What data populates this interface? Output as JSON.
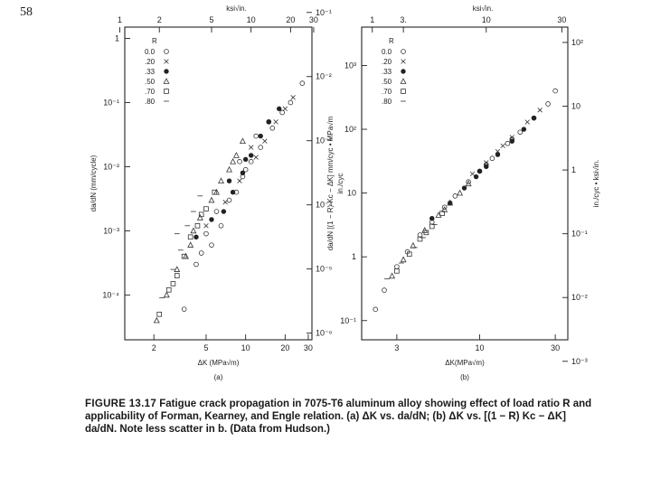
{
  "page_number": "58",
  "caption": {
    "figure_label": "FIGURE 13.17",
    "text": "Fatigue crack propagation in 7075-T6 aluminum alloy showing effect of load ratio R and applicability of Forman, Kearney, and Engle relation. (a) ΔK vs. da/dN; (b) ΔK vs. [(1 − R) Kc − ΔK] da/dN. Note less scatter in b. (Data from Hudson.)"
  },
  "chart_data": [
    {
      "type": "scatter",
      "panel_label": "(a)",
      "xlabel": "ΔK (MPa√m)",
      "top_xlabel": "ksi√in.",
      "ylabel": "da/dN (mm/cycle)",
      "right_ylabel": "in./cyc",
      "x_scale": "log",
      "y_scale": "log",
      "xlim": [
        1.2,
        32
      ],
      "ylim": [
        2e-05,
        1.5
      ],
      "x_ticks": [
        "2",
        "5",
        "10",
        "20",
        "30"
      ],
      "x_tick_values": [
        2,
        5,
        10,
        20,
        30
      ],
      "top_ticks": [
        "1",
        "2",
        "5",
        "10",
        "20",
        "30"
      ],
      "top_tick_values": [
        1.1,
        2.2,
        5.5,
        11,
        22,
        33
      ],
      "y_ticks": [
        "1",
        "10⁻¹",
        "10⁻²",
        "10⁻³",
        "10⁻⁴"
      ],
      "y_tick_values": [
        1,
        0.1,
        0.01,
        0.001,
        0.0001
      ],
      "right_ticks": [
        "10⁻¹",
        "10⁻²",
        "10⁻³",
        "10⁻⁴",
        "10⁻⁵",
        "10⁻⁶"
      ],
      "right_tick_values": [
        2.54,
        0.254,
        0.0254,
        0.00254,
        0.000254,
        2.54e-05
      ],
      "legend": {
        "title": "R",
        "placement": "top-left",
        "entries": [
          {
            "label": "0.0",
            "marker": "circle"
          },
          {
            "label": ".20",
            "marker": "cross"
          },
          {
            "label": ".33",
            "marker": "dot"
          },
          {
            "label": ".50",
            "marker": "triangle"
          },
          {
            "label": ".70",
            "marker": "square"
          },
          {
            "label": ".80",
            "marker": "dash"
          }
        ]
      },
      "series": [
        {
          "name": "0.0",
          "marker": "circle",
          "points": [
            [
              3.4,
              6e-05
            ],
            [
              4.2,
              0.0003
            ],
            [
              5.5,
              0.0006
            ],
            [
              6.5,
              0.0012
            ],
            [
              7.5,
              0.003
            ],
            [
              8.5,
              0.004
            ],
            [
              9.5,
              0.007
            ],
            [
              11,
              0.012
            ],
            [
              13,
              0.02
            ],
            [
              16,
              0.04
            ],
            [
              19,
              0.07
            ],
            [
              22,
              0.1
            ],
            [
              27,
              0.2
            ],
            [
              5.0,
              0.0009
            ],
            [
              6.0,
              0.002
            ],
            [
              9,
              0.012
            ],
            [
              12,
              0.03
            ],
            [
              15,
              0.05
            ],
            [
              4.6,
              0.00045
            ],
            [
              10,
              0.009
            ]
          ]
        },
        {
          "name": ".20",
          "marker": "cross",
          "points": [
            [
              5.0,
              0.0012
            ],
            [
              7,
              0.0028
            ],
            [
              9,
              0.006
            ],
            [
              12,
              0.014
            ],
            [
              14,
              0.025
            ],
            [
              17,
              0.05
            ],
            [
              20,
              0.08
            ],
            [
              23,
              0.12
            ],
            [
              11,
              0.02
            ]
          ]
        },
        {
          "name": ".33",
          "marker": "dot",
          "points": [
            [
              4.2,
              0.0008
            ],
            [
              5.5,
              0.0015
            ],
            [
              6.8,
              0.002
            ],
            [
              8,
              0.004
            ],
            [
              9.5,
              0.008
            ],
            [
              11,
              0.015
            ],
            [
              13,
              0.03
            ],
            [
              15,
              0.05
            ],
            [
              18,
              0.08
            ],
            [
              7.5,
              0.006
            ],
            [
              10,
              0.013
            ]
          ]
        },
        {
          "name": ".50",
          "marker": "triangle",
          "points": [
            [
              2.1,
              4e-05
            ],
            [
              2.5,
              0.0001
            ],
            [
              3,
              0.00025
            ],
            [
              3.5,
              0.0004
            ],
            [
              4,
              0.001
            ],
            [
              4.5,
              0.0016
            ],
            [
              5.5,
              0.003
            ],
            [
              6.5,
              0.006
            ],
            [
              7.5,
              0.009
            ],
            [
              8.5,
              0.015
            ],
            [
              9.5,
              0.025
            ],
            [
              3.8,
              0.0006
            ],
            [
              6,
              0.004
            ],
            [
              8,
              0.012
            ]
          ]
        },
        {
          "name": ".70",
          "marker": "square",
          "points": [
            [
              2.2,
              5e-05
            ],
            [
              2.6,
              0.00012
            ],
            [
              3,
              0.0002
            ],
            [
              3.4,
              0.0004
            ],
            [
              3.8,
              0.0008
            ],
            [
              4.3,
              0.0012
            ],
            [
              5,
              0.0022
            ],
            [
              5.8,
              0.004
            ],
            [
              2.8,
              0.00015
            ],
            [
              4.6,
              0.0018
            ]
          ]
        },
        {
          "name": ".80",
          "marker": "dash",
          "points": [
            [
              2.3,
              9e-05
            ],
            [
              2.8,
              0.00025
            ],
            [
              3.2,
              0.0005
            ],
            [
              3.6,
              0.0012
            ],
            [
              4,
              0.002
            ],
            [
              4.5,
              0.0035
            ],
            [
              3.0,
              0.0009
            ]
          ]
        }
      ]
    },
    {
      "type": "scatter",
      "panel_label": "(b)",
      "xlabel": "ΔK(MPa√m)",
      "top_xlabel": "ksi√in.",
      "ylabel": "da/dN [(1 − R) Kc − ΔK] mm/cyc • MPa√m",
      "right_ylabel": "in./cyc • ksi√in.",
      "x_scale": "log",
      "y_scale": "log",
      "xlim": [
        1.8,
        36
      ],
      "ylim": [
        0.05,
        4000
      ],
      "x_ticks": [
        "3",
        "10",
        "30"
      ],
      "x_tick_values": [
        3,
        10,
        30
      ],
      "top_ticks": [
        "1",
        "3.",
        "10",
        "30"
      ],
      "top_tick_values": [
        2.1,
        3.3,
        11,
        33
      ],
      "y_ticks": [
        "10³",
        "10²",
        "10",
        "1",
        "10⁻¹"
      ],
      "y_tick_values": [
        1000,
        100,
        10,
        1,
        0.1
      ],
      "right_ticks": [
        "10²",
        "10",
        "1",
        "10⁻¹",
        "10⁻²",
        "10⁻³"
      ],
      "right_tick_values": [
        2300,
        230,
        23,
        2.3,
        0.23,
        0.023
      ],
      "legend": {
        "title": "R",
        "placement": "top-left",
        "entries": [
          {
            "label": "0.0",
            "marker": "circle"
          },
          {
            "label": ".20",
            "marker": "cross"
          },
          {
            "label": ".33",
            "marker": "dot"
          },
          {
            "label": ".50",
            "marker": "triangle"
          },
          {
            "label": ".70",
            "marker": "square"
          },
          {
            "label": ".80",
            "marker": "dash"
          }
        ]
      },
      "series": [
        {
          "name": "0.0",
          "marker": "circle",
          "points": [
            [
              2.2,
              0.15
            ],
            [
              2.5,
              0.3
            ],
            [
              3,
              0.7
            ],
            [
              3.5,
              1.2
            ],
            [
              4.2,
              2.2
            ],
            [
              5,
              3.5
            ],
            [
              6,
              6
            ],
            [
              7,
              9
            ],
            [
              8.5,
              15
            ],
            [
              10,
              22
            ],
            [
              12,
              35
            ],
            [
              15,
              60
            ],
            [
              18,
              90
            ],
            [
              22,
              150
            ],
            [
              27,
              250
            ],
            [
              30,
              400
            ],
            [
              11,
              28
            ],
            [
              16,
              70
            ]
          ]
        },
        {
          "name": ".20",
          "marker": "cross",
          "points": [
            [
              9,
              20
            ],
            [
              11,
              30
            ],
            [
              13,
              45
            ],
            [
              16,
              75
            ],
            [
              20,
              130
            ],
            [
              24,
              200
            ],
            [
              14,
              55
            ]
          ]
        },
        {
          "name": ".33",
          "marker": "dot",
          "points": [
            [
              5,
              4
            ],
            [
              6.5,
              7
            ],
            [
              8,
              12
            ],
            [
              9.5,
              18
            ],
            [
              11,
              26
            ],
            [
              13,
              40
            ],
            [
              16,
              65
            ],
            [
              19,
              100
            ],
            [
              22,
              150
            ],
            [
              10,
              22
            ]
          ]
        },
        {
          "name": ".50",
          "marker": "triangle",
          "points": [
            [
              2.8,
              0.5
            ],
            [
              3.3,
              0.9
            ],
            [
              3.8,
              1.5
            ],
            [
              4.5,
              2.6
            ],
            [
              5.5,
              4.5
            ],
            [
              6.5,
              7
            ],
            [
              7.5,
              10
            ],
            [
              8.5,
              14
            ],
            [
              6,
              5.5
            ]
          ]
        },
        {
          "name": ".70",
          "marker": "square",
          "points": [
            [
              3,
              0.6
            ],
            [
              3.6,
              1.1
            ],
            [
              4.2,
              1.9
            ],
            [
              5,
              3
            ],
            [
              5.8,
              4.8
            ],
            [
              4.6,
              2.4
            ]
          ]
        },
        {
          "name": ".80",
          "marker": "dash",
          "points": [
            [
              2.6,
              0.45
            ],
            [
              3.2,
              0.8
            ],
            [
              3.9,
              1.4
            ],
            [
              4.4,
              2
            ],
            [
              5.2,
              3.2
            ]
          ]
        }
      ]
    }
  ]
}
